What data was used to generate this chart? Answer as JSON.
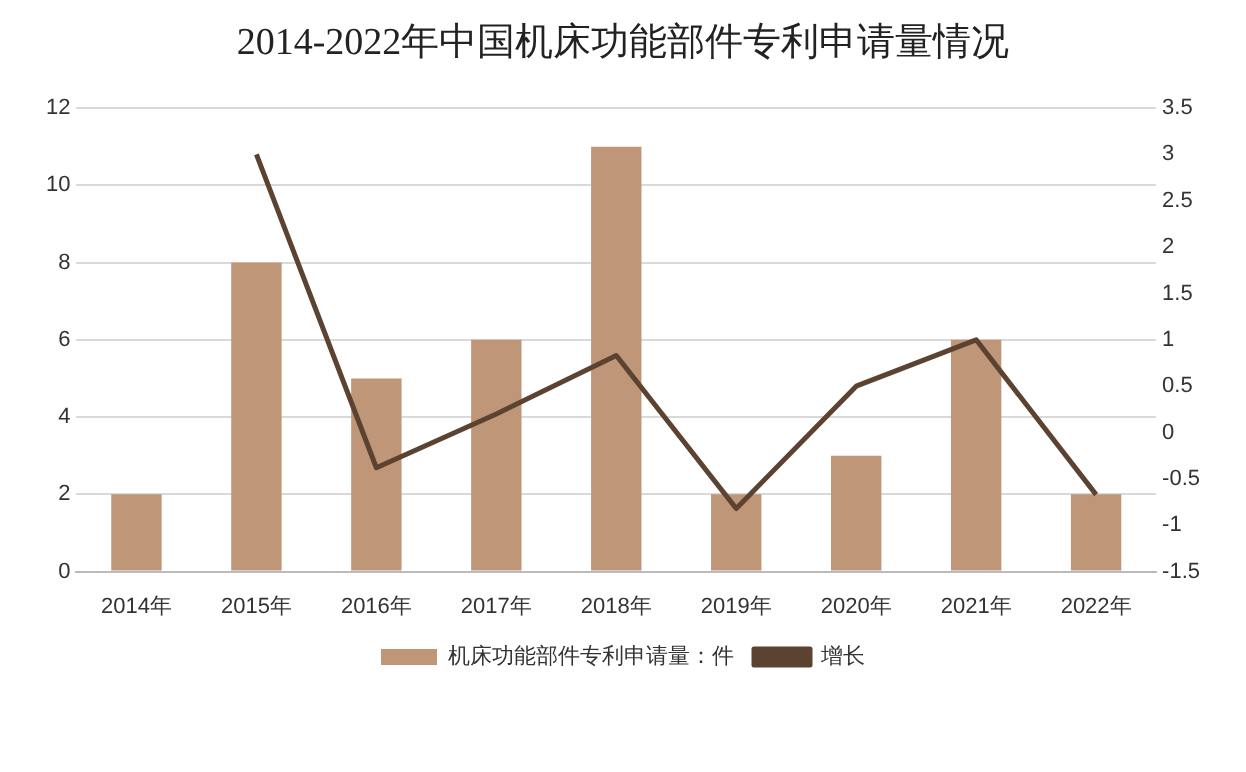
{
  "chart_data": {
    "type": "bar",
    "title": "2014-2022年中国机床功能部件专利申请量情况",
    "categories": [
      "2014年",
      "2015年",
      "2016年",
      "2017年",
      "2018年",
      "2019年",
      "2020年",
      "2021年",
      "2022年"
    ],
    "series": [
      {
        "name": "机床功能部件专利申请量：件",
        "color": "#bf9677",
        "values": [
          2,
          8,
          5,
          6,
          11,
          2,
          3,
          6,
          2
        ]
      },
      {
        "name": "增长",
        "type": "line",
        "axis": "y2",
        "color": "#5c4331",
        "values": [
          null,
          3,
          -0.38,
          0.2,
          0.83,
          -0.82,
          0.5,
          1,
          -0.67
        ]
      }
    ],
    "ylim": [
      0,
      12
    ],
    "yticks": [
      0,
      2,
      4,
      6,
      8,
      10,
      12
    ],
    "y2lim": [
      -1.5,
      3.5
    ],
    "y2ticks": [
      -1.5,
      -1,
      -0.5,
      0,
      0.5,
      1,
      1.5,
      2,
      2.5,
      3,
      3.5
    ],
    "grid": "y",
    "legend": "bottom",
    "marker": "none",
    "line_style": "solid"
  }
}
